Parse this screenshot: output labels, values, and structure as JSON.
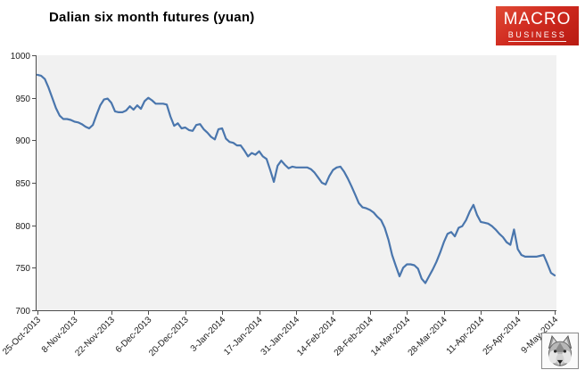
{
  "header": {
    "title": "Dalian six month futures (yuan)"
  },
  "logo": {
    "line1": "MACRO",
    "line2": "BUSINESS",
    "bg_color": "#cf2a21",
    "text_color": "#ffffff"
  },
  "wolf_icon": {
    "label": "macrobusiness-wolf-mascot"
  },
  "chart_data": {
    "type": "line",
    "title": "Dalian six month futures (yuan)",
    "xlabel": "",
    "ylabel": "",
    "ylim": [
      700,
      1000
    ],
    "y_ticks": [
      1000,
      950,
      900,
      850,
      800,
      750,
      700
    ],
    "x_tick_labels": [
      "25-Oct-2013",
      "8-Nov-2013",
      "22-Nov-2013",
      "6-Dec-2013",
      "20-Dec-2013",
      "3-Jan-2014",
      "17-Jan-2014",
      "31-Jan-2014",
      "14-Feb-2014",
      "28-Feb-2014",
      "14-Mar-2014",
      "28-Mar-2014",
      "11-Apr-2014",
      "25-Apr-2014",
      "9-May-2014"
    ],
    "points_per_tick_interval": 10,
    "grid": "off",
    "legend": "none",
    "plot_bg": "#f1f1f1",
    "axis_color": "#4d4d4d",
    "label_color": "#1a1a1a",
    "series": [
      {
        "name": "Dalian six month futures (yuan)",
        "color": "#4a76ad",
        "values": [
          977,
          976,
          972,
          962,
          950,
          938,
          929,
          925,
          925,
          924,
          922,
          921,
          919,
          916,
          914,
          918,
          930,
          941,
          948,
          949,
          944,
          934,
          933,
          933,
          935,
          940,
          936,
          941,
          937,
          946,
          950,
          947,
          943,
          943,
          943,
          942,
          928,
          917,
          920,
          914,
          915,
          912,
          911,
          918,
          919,
          913,
          909,
          904,
          901,
          913,
          914,
          902,
          898,
          897,
          894,
          894,
          888,
          881,
          885,
          883,
          887,
          881,
          878,
          865,
          851,
          870,
          876,
          871,
          867,
          869,
          868,
          868,
          868,
          868,
          866,
          862,
          856,
          850,
          848,
          858,
          865,
          868,
          869,
          863,
          855,
          846,
          836,
          826,
          821,
          820,
          818,
          815,
          810,
          806,
          797,
          783,
          765,
          752,
          740,
          750,
          754,
          754,
          753,
          749,
          737,
          732,
          740,
          748,
          757,
          768,
          780,
          790,
          792,
          787,
          797,
          799,
          806,
          816,
          824,
          812,
          804,
          803,
          802,
          799,
          795,
          790,
          786,
          780,
          777,
          795,
          772,
          765,
          763,
          763,
          763,
          763,
          764,
          765,
          755,
          744,
          741
        ]
      }
    ]
  }
}
